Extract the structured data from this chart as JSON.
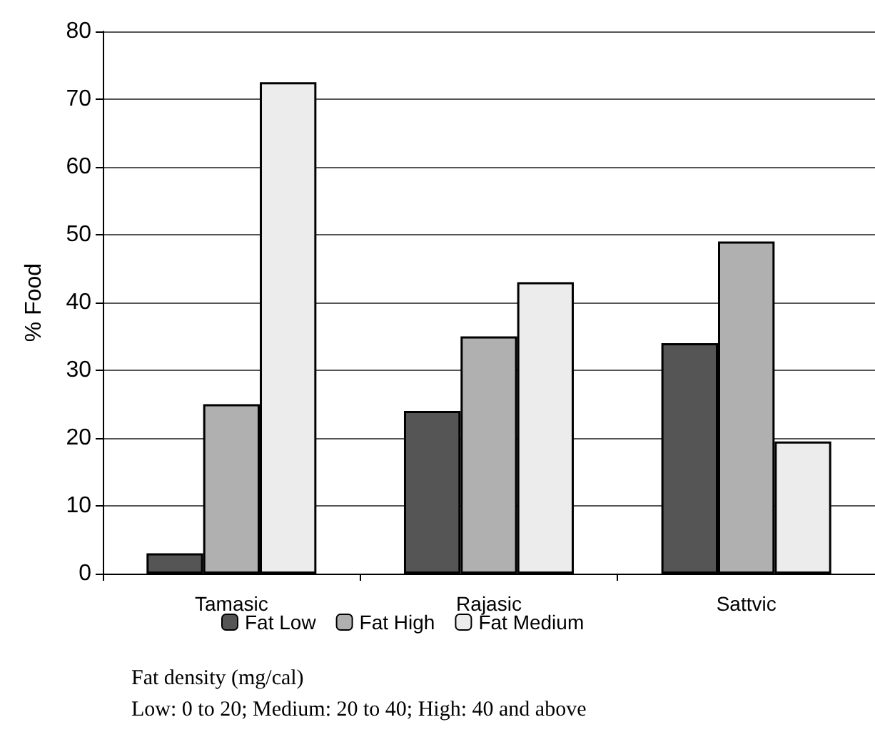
{
  "chart_data": {
    "type": "bar",
    "ylabel": "% Food",
    "categories": [
      "Tamasic",
      "Rajasic",
      "Sattvic"
    ],
    "series": [
      {
        "name": "Fat Low",
        "color": "#555555",
        "values": [
          3,
          24,
          34
        ]
      },
      {
        "name": "Fat High",
        "color": "#b0b0b0",
        "values": [
          25,
          35,
          49
        ]
      },
      {
        "name": "Fat Medium",
        "color": "#ececec",
        "values": [
          72.5,
          43,
          19.5
        ]
      }
    ],
    "ylim": [
      0,
      80
    ],
    "yticks": [
      0,
      10,
      20,
      30,
      40,
      50,
      60,
      70,
      80
    ],
    "grid": "y",
    "legend": "bottom",
    "annotations": [
      "Fat density (mg/cal)",
      "Low: 0 to 20; Medium: 20 to 40; High: 40 and above"
    ]
  }
}
